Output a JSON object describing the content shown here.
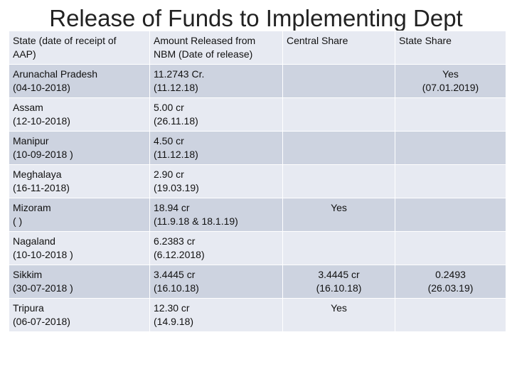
{
  "title": "Release of Funds to Implementing Dept",
  "table": {
    "headers": [
      [
        "State (date of receipt of",
        "AAP)"
      ],
      [
        "Amount Released from",
        "NBM (Date of release)"
      ],
      [
        "Central Share"
      ],
      [
        "State Share"
      ]
    ],
    "rows": [
      {
        "state": [
          "Arunachal Pradesh",
          "(04-10-2018)"
        ],
        "amount": [
          "11.2743 Cr.",
          "(11.12.18)"
        ],
        "central": [],
        "state_share": [
          "Yes",
          "(07.01.2019)"
        ]
      },
      {
        "state": [
          "Assam",
          "(12-10-2018)"
        ],
        "amount": [
          "5.00 cr",
          "(26.11.18)"
        ],
        "central": [],
        "state_share": []
      },
      {
        "state": [
          "Manipur",
          "(10-09-2018 )"
        ],
        "amount": [
          "4.50 cr",
          "(11.12.18)"
        ],
        "central": [],
        "state_share": []
      },
      {
        "state": [
          "Meghalaya",
          "(16-11-2018)"
        ],
        "amount": [
          "2.90 cr",
          "(19.03.19)"
        ],
        "central": [],
        "state_share": []
      },
      {
        "state": [
          "Mizoram",
          "(              )"
        ],
        "amount": [
          "18.94 cr",
          "(11.9.18 & 18.1.19)"
        ],
        "central": [
          "Yes"
        ],
        "state_share": []
      },
      {
        "state": [
          "Nagaland",
          "(10-10-2018 )"
        ],
        "amount": [
          "6.2383 cr",
          "(6.12.2018)"
        ],
        "central": [],
        "state_share": []
      },
      {
        "state": [
          "Sikkim",
          "(30-07-2018 )"
        ],
        "amount": [
          "3.4445 cr",
          "(16.10.18)"
        ],
        "central": [
          "3.4445 cr",
          "(16.10.18)"
        ],
        "state_share": [
          "0.2493",
          "(26.03.19)"
        ]
      },
      {
        "state": [
          "Tripura",
          "(06-07-2018)"
        ],
        "amount": [
          "12.30 cr",
          "(14.9.18)"
        ],
        "central": [
          "Yes"
        ],
        "state_share": []
      }
    ]
  }
}
